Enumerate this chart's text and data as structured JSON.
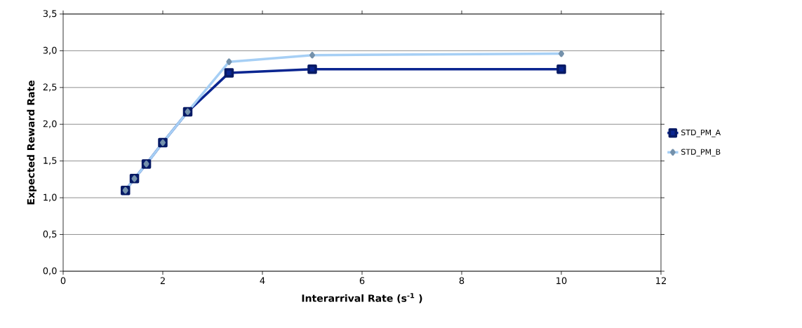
{
  "chart_data": {
    "type": "line",
    "xlabel": "Interarrival Rate (s$^{-1}$ )",
    "ylabel": "Expected Reward Rate",
    "x": [
      1.25,
      1.43,
      1.67,
      2,
      2.5,
      3.33,
      5,
      10
    ],
    "series": [
      {
        "name": "STD_PM_A",
        "color": "#0a2590",
        "marker": "square",
        "values": [
          1.1,
          1.26,
          1.46,
          1.75,
          2.17,
          2.7,
          2.75,
          2.75
        ]
      },
      {
        "name": "STD_PM_B",
        "color": "#a6cff5",
        "marker": "diamond",
        "values": [
          1.1,
          1.26,
          1.46,
          1.75,
          2.17,
          2.85,
          2.94,
          2.96
        ]
      }
    ],
    "xlim": [
      0,
      12
    ],
    "xticks": [
      0,
      2,
      4,
      6,
      8,
      10,
      12
    ],
    "ylim": [
      0,
      3.5
    ],
    "yticks": [
      {
        "value": 0,
        "label": "0,0"
      },
      {
        "value": 0.5,
        "label": "0,5"
      },
      {
        "value": 1,
        "label": "1,0"
      },
      {
        "value": 1.5,
        "label": "1,5"
      },
      {
        "value": 2,
        "label": "2,0"
      },
      {
        "value": 2.5,
        "label": "2,5"
      },
      {
        "value": 3,
        "label": "3,0"
      },
      {
        "value": 3.5,
        "label": "3,5"
      }
    ],
    "grid": "y",
    "legend": "right",
    "line_style": "solid"
  }
}
